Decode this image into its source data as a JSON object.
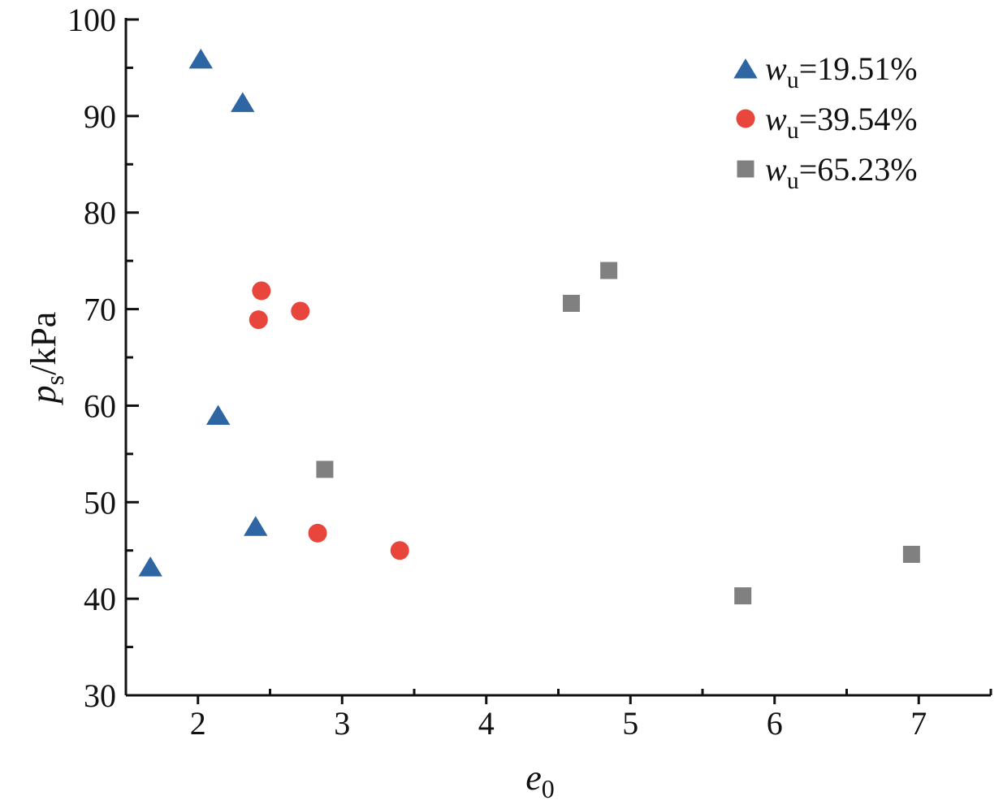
{
  "chart_data": {
    "type": "scatter",
    "xlabel": {
      "main": "e",
      "sub": "0"
    },
    "ylabel": {
      "main": "p",
      "sub": "s",
      "rest": "/kPa"
    },
    "xlim": [
      1.5,
      7.5
    ],
    "ylim": [
      30,
      100
    ],
    "x_ticks": [
      "2",
      "3",
      "4",
      "5",
      "6",
      "7"
    ],
    "y_ticks": [
      "30",
      "40",
      "50",
      "60",
      "70",
      "80",
      "90",
      "100"
    ],
    "grid": false,
    "legend_position": "top-right",
    "series": [
      {
        "name": "wu=19.51%",
        "legend": {
          "main": "w",
          "sub": "u",
          "rest": "=19.51%"
        },
        "marker": "triangle",
        "color": "#2e65a3",
        "points": [
          {
            "x": 1.67,
            "y": 43.2
          },
          {
            "x": 2.02,
            "y": 95.8
          },
          {
            "x": 2.31,
            "y": 91.3
          },
          {
            "x": 2.14,
            "y": 58.9
          },
          {
            "x": 2.4,
            "y": 47.4
          }
        ]
      },
      {
        "name": "wu=39.54%",
        "legend": {
          "main": "w",
          "sub": "u",
          "rest": "=39.54%"
        },
        "marker": "circle",
        "color": "#e8453c",
        "points": [
          {
            "x": 2.44,
            "y": 71.9
          },
          {
            "x": 2.42,
            "y": 68.9
          },
          {
            "x": 2.71,
            "y": 69.8
          },
          {
            "x": 2.83,
            "y": 46.8
          },
          {
            "x": 3.4,
            "y": 45.0
          }
        ]
      },
      {
        "name": "wu=65.23%",
        "legend": {
          "main": "w",
          "sub": "u",
          "rest": "=65.23%"
        },
        "marker": "square",
        "color": "#808080",
        "points": [
          {
            "x": 2.88,
            "y": 53.4
          },
          {
            "x": 4.59,
            "y": 70.6
          },
          {
            "x": 4.85,
            "y": 74.0
          },
          {
            "x": 5.78,
            "y": 40.3
          },
          {
            "x": 6.95,
            "y": 44.6
          }
        ]
      }
    ]
  }
}
